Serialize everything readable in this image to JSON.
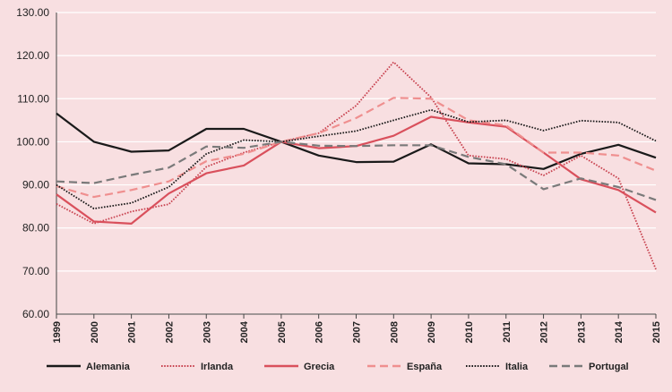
{
  "chart_data": {
    "type": "line",
    "title": "",
    "xlabel": "",
    "ylabel": "",
    "ylim": [
      60,
      130
    ],
    "yticks": [
      "60.00",
      "70.00",
      "80.00",
      "90.00",
      "100.00",
      "110.00",
      "120.00",
      "130.00"
    ],
    "ytick_values": [
      60,
      70,
      80,
      90,
      100,
      110,
      120,
      130
    ],
    "categories": [
      "1999",
      "2000",
      "2001",
      "2002",
      "2003",
      "2004",
      "2005",
      "2006",
      "2007",
      "2008",
      "2009",
      "2010",
      "2011",
      "2012",
      "2013",
      "2014",
      "2015"
    ],
    "grid": true,
    "legend_position": "bottom",
    "series": [
      {
        "name": "Alemania",
        "color": "#1a1a1a",
        "style": "solid",
        "values": [
          106.6,
          100.0,
          97.7,
          98.0,
          103.0,
          103.0,
          100.0,
          96.8,
          95.3,
          95.4,
          99.4,
          95.0,
          94.8,
          93.7,
          97.2,
          99.3,
          96.3
        ]
      },
      {
        "name": "Irlanda",
        "color": "#c8424f",
        "style": "dotted",
        "values": [
          85.6,
          81.0,
          83.8,
          85.5,
          94.2,
          97.5,
          100.0,
          102.0,
          108.4,
          118.5,
          110.3,
          96.8,
          96.0,
          92.2,
          96.8,
          91.5,
          70.4
        ]
      },
      {
        "name": "Grecia",
        "color": "#d9505c",
        "style": "solid",
        "values": [
          87.8,
          81.5,
          81.0,
          88.0,
          92.7,
          94.5,
          100.0,
          98.5,
          99.0,
          101.4,
          105.8,
          104.5,
          103.5,
          97.5,
          91.3,
          88.8,
          83.6
        ]
      },
      {
        "name": "España",
        "color": "#ef8f8f",
        "style": "dashed",
        "values": [
          89.7,
          87.2,
          88.8,
          90.8,
          95.5,
          97.2,
          100.0,
          102.0,
          105.5,
          110.2,
          110.0,
          105.0,
          103.8,
          97.5,
          97.5,
          96.8,
          93.3
        ]
      },
      {
        "name": "Italia",
        "color": "#1a1a1a",
        "style": "dotted",
        "values": [
          90.0,
          84.5,
          85.8,
          89.5,
          97.2,
          100.4,
          100.0,
          101.3,
          102.5,
          105.0,
          107.4,
          104.6,
          105.0,
          102.6,
          104.9,
          104.5,
          100.2
        ]
      },
      {
        "name": "Portugal",
        "color": "#7a7a7a",
        "style": "dashed",
        "values": [
          90.8,
          90.4,
          92.3,
          94.0,
          98.9,
          98.6,
          100.0,
          99.1,
          99.0,
          99.2,
          99.2,
          96.5,
          94.8,
          89.0,
          91.5,
          89.5,
          86.5
        ]
      }
    ]
  }
}
